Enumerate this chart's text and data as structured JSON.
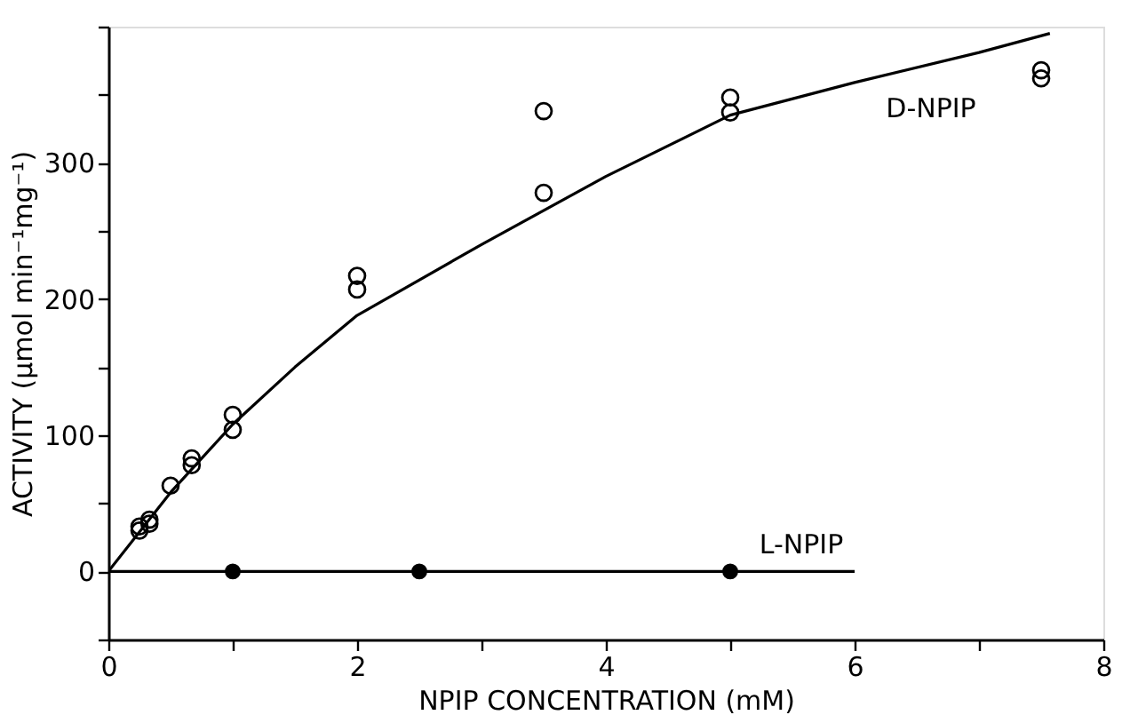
{
  "chart_data": {
    "type": "scatter",
    "xlabel": "NPIP CONCENTRATION (mM)",
    "ylabel": "ACTIVITY (μmol min⁻¹mg⁻¹)",
    "xlim": [
      0,
      8
    ],
    "ylim": [
      -50,
      400
    ],
    "xticks": [
      0,
      {
        "value": 1,
        "label": null
      },
      2,
      {
        "value": 3,
        "label": null
      },
      4,
      {
        "value": 5,
        "label": null
      },
      6,
      {
        "value": 7,
        "label": null
      },
      8
    ],
    "yticks": [
      {
        "value": -50,
        "label": null
      },
      0,
      {
        "value": 50,
        "label": null
      },
      100,
      {
        "value": 150,
        "label": null
      },
      200,
      {
        "value": 250,
        "label": null
      },
      300,
      {
        "value": 350,
        "label": null
      },
      {
        "value": 400,
        "label": null
      }
    ],
    "series": [
      {
        "type": "line",
        "color": "#000000",
        "marker": "none",
        "x": [
          0,
          0.5,
          1,
          1.5,
          2,
          3,
          4,
          5,
          6,
          7,
          7.57
        ],
        "values": [
          0,
          58,
          108,
          150,
          188,
          240,
          290,
          335,
          359,
          381,
          395
        ]
      },
      {
        "name": "D-NPIP",
        "color": "#000000",
        "marker": "circle",
        "x": [
          0.25,
          0.25,
          0.33,
          0.33,
          0.5,
          0.67,
          0.67,
          1,
          1,
          2,
          2,
          3.5,
          3.5,
          5,
          5,
          7.5,
          7.5
        ],
        "values": [
          30,
          33,
          35,
          38,
          63,
          78,
          83,
          104,
          115,
          207,
          217,
          278,
          338,
          337,
          348,
          362,
          368
        ]
      },
      {
        "type": "line",
        "color": "#000000",
        "marker": "none",
        "x": [
          0,
          6
        ],
        "values": [
          0,
          0
        ]
      },
      {
        "name": "L-NPIP",
        "color": "#000000",
        "marker": "circle",
        "x": [
          1,
          2.5,
          5
        ],
        "values": [
          0,
          0,
          0
        ]
      }
    ]
  }
}
